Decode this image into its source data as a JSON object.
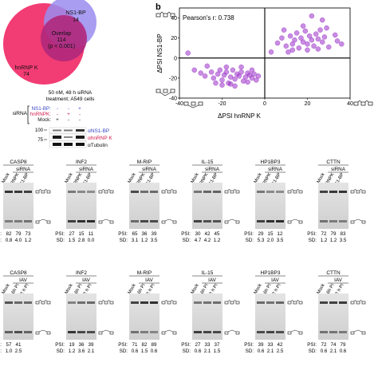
{
  "panel_b_label": "b",
  "venn": {
    "ns1": {
      "name": "NS1-BP",
      "count": "14"
    },
    "overlap": {
      "label": "Overlap",
      "count": "114",
      "p": "(p < 0.001)"
    },
    "hnrnp": {
      "name": "hnRNP K",
      "count": "74"
    }
  },
  "western": {
    "conditions": "50 nM, 48 h siRNA\ntreatment; A549 cells",
    "siRNA_label": "siRNA",
    "rows": [
      {
        "name": "NS1-BP:",
        "cells": [
          "-",
          "-",
          "+"
        ],
        "color": "#3b47c4"
      },
      {
        "name": "hnRNPK:",
        "cells": [
          "-",
          "+",
          "-"
        ],
        "color": "#d11a4a"
      },
      {
        "name": "Mock:",
        "cells": [
          "+",
          "-",
          "-"
        ],
        "color": "#111111"
      }
    ],
    "mw_markers": [
      "100",
      "75"
    ],
    "antibodies": [
      {
        "label": "αNS1-BP",
        "color": "#3b47c4"
      },
      {
        "label": "αhnRNP K",
        "color": "#d11a4a"
      },
      {
        "label": "αTubulin",
        "color": "#111111"
      }
    ]
  },
  "gels": {
    "row1_labels": [
      "CASP8",
      "INF2",
      "M-RIP",
      "IL-15",
      "HP1BP3",
      "CTTN"
    ],
    "row1_header": "siRNA",
    "row1_lanes": [
      "Mock",
      "hnRNPK",
      "NS1-BP"
    ],
    "row1_psi": [
      [
        "82",
        "79",
        "73"
      ],
      [
        "27",
        "15",
        "11"
      ],
      [
        "65",
        "36",
        "39"
      ],
      [
        "30",
        "42",
        "45"
      ],
      [
        "29",
        "15",
        "12"
      ],
      [
        "72",
        "79",
        "83"
      ]
    ],
    "row1_sd": [
      [
        "0.8",
        "4.0",
        "1.2"
      ],
      [
        "1.5",
        "2.8",
        "0.0"
      ],
      [
        "3.1",
        "1.2",
        "3.5"
      ],
      [
        "4.7",
        "4.2",
        "1.2"
      ],
      [
        "5.3",
        "2.0",
        "3.5"
      ],
      [
        "1.2",
        "1.2",
        "3.5"
      ]
    ],
    "row2_labels": [
      "CASP8",
      "INF2",
      "M-RIP",
      "IL-15",
      "HP1BP3",
      "CTTN"
    ],
    "row2_header": "IAV",
    "row2_lanes": [
      "Mock",
      "6h PI",
      "12 h PI"
    ],
    "row2_psi": [
      [
        "57",
        "41",
        ""
      ],
      [
        "19",
        "36",
        "39"
      ],
      [
        "71",
        "82",
        "89"
      ],
      [
        "27",
        "33",
        "37"
      ],
      [
        "39",
        "33",
        "42"
      ],
      [
        "72",
        "74",
        "79"
      ]
    ],
    "row2_sd": [
      [
        "1.0",
        "2.5",
        ""
      ],
      [
        "1.2",
        "3.6",
        "2.1"
      ],
      [
        "0.6",
        "1.5",
        "0.6"
      ],
      [
        "0.6",
        "2.1",
        "1.5"
      ],
      [
        "0.6",
        "2.1",
        "2.5"
      ],
      [
        "0.6",
        "2.1",
        "0.6"
      ]
    ],
    "psi_label": "PSI:",
    "sd_label": "SD:"
  },
  "chart_data": {
    "type": "scatter",
    "xlabel": "ΔPSI hnRNP K",
    "ylabel": "ΔPSI NS1-BP",
    "xlim": [
      -40,
      40
    ],
    "ylim": [
      -40,
      50
    ],
    "xticks": [
      -40,
      -20,
      0,
      20,
      40
    ],
    "yticks": [
      -40,
      -20,
      0,
      20,
      40
    ],
    "annotation": "Pearson's r: 0.738",
    "grid": false,
    "color": "#9b30c8",
    "points": [
      [
        -33,
        -12
      ],
      [
        -30,
        -15
      ],
      [
        -28,
        -18
      ],
      [
        -25,
        -14
      ],
      [
        -24,
        -20
      ],
      [
        -22,
        -16
      ],
      [
        -21,
        -12
      ],
      [
        -20,
        -22
      ],
      [
        -19,
        -17
      ],
      [
        -18,
        -14
      ],
      [
        -17,
        -25
      ],
      [
        -16,
        -19
      ],
      [
        -15,
        -12
      ],
      [
        -14,
        -21
      ],
      [
        -13,
        -16
      ],
      [
        -12,
        -18
      ],
      [
        -11,
        -14
      ],
      [
        -10,
        -23
      ],
      [
        -9,
        -19
      ],
      [
        -8,
        -15
      ],
      [
        -8,
        -24
      ],
      [
        -7,
        -17
      ],
      [
        -6,
        -20
      ],
      [
        -6,
        -12
      ],
      [
        -5,
        -16
      ],
      [
        -4,
        -22
      ],
      [
        -14,
        -28
      ],
      [
        -23,
        -25
      ],
      [
        -27,
        -8
      ],
      [
        -11,
        -9
      ],
      [
        -16,
        -26
      ],
      [
        -3,
        -18
      ],
      [
        -18,
        -9
      ],
      [
        -20,
        -27
      ],
      [
        3,
        6
      ],
      [
        6,
        15
      ],
      [
        8,
        20
      ],
      [
        10,
        12
      ],
      [
        12,
        22
      ],
      [
        14,
        18
      ],
      [
        15,
        25
      ],
      [
        16,
        10
      ],
      [
        17,
        20
      ],
      [
        18,
        16
      ],
      [
        19,
        27
      ],
      [
        20,
        14
      ],
      [
        21,
        22
      ],
      [
        22,
        18
      ],
      [
        23,
        12
      ],
      [
        24,
        24
      ],
      [
        25,
        19
      ],
      [
        26,
        28
      ],
      [
        27,
        16
      ],
      [
        28,
        21
      ],
      [
        30,
        11
      ],
      [
        18,
        32
      ],
      [
        13,
        14
      ],
      [
        33,
        23
      ],
      [
        9,
        28
      ],
      [
        34,
        17
      ],
      [
        11,
        6
      ],
      [
        20,
        8
      ],
      [
        29,
        30
      ],
      [
        25,
        9
      ],
      [
        36,
        14
      ],
      [
        22,
        42
      ],
      [
        27,
        38
      ],
      [
        13,
        8
      ],
      [
        -36,
        5
      ]
    ]
  }
}
